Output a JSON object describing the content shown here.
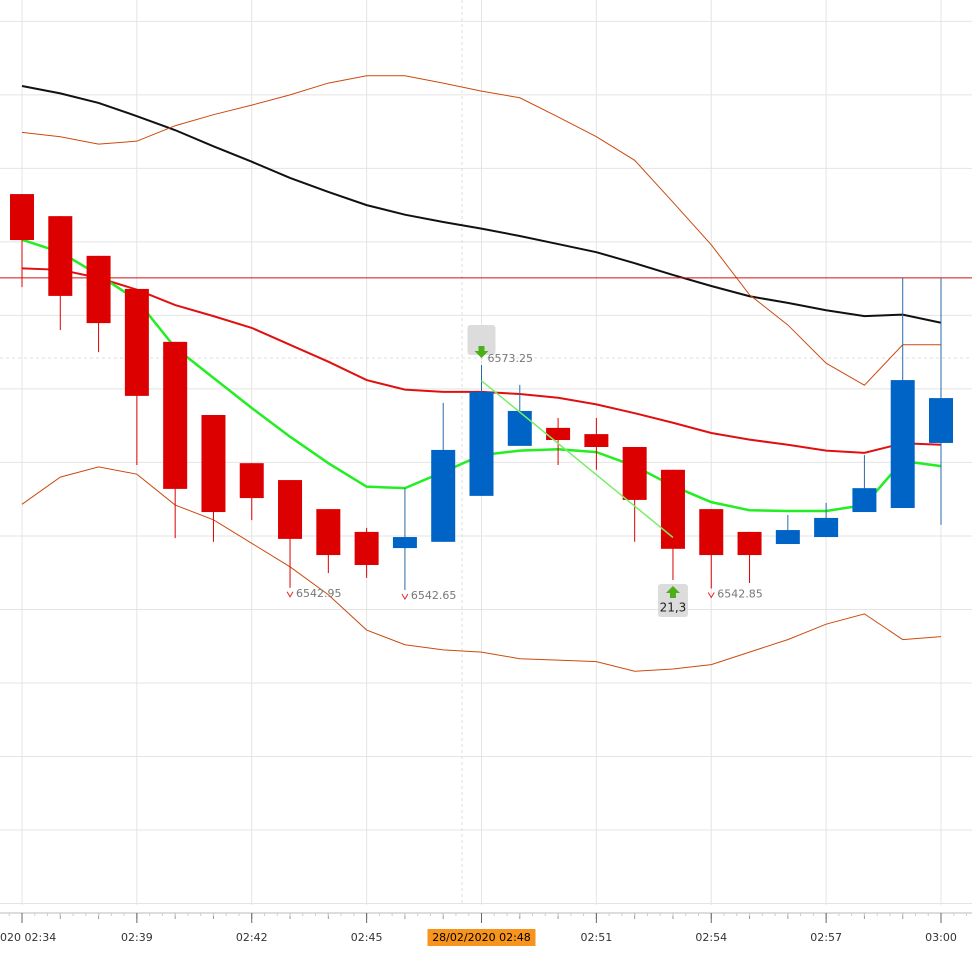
{
  "chart_data": {
    "type": "candlestick",
    "categories": [
      "020 02:34",
      null,
      null,
      "02:39",
      null,
      null,
      "02:42",
      null,
      null,
      "02:45",
      null,
      null,
      "28/02/2020 02:48",
      null,
      null,
      "02:51",
      null,
      null,
      "02:54",
      null,
      null,
      "02:57",
      null,
      null,
      "03:00"
    ],
    "highlight_category": 12,
    "candles": [
      {
        "open": 6596.5,
        "high": 6596.5,
        "low": 6583.85,
        "close": 6590.25
      },
      {
        "open": 6593.5,
        "high": 6593.5,
        "low": 6578.0,
        "close": 6582.65
      },
      {
        "open": 6588.1,
        "high": 6588.1,
        "low": 6575.0,
        "close": 6578.95
      },
      {
        "open": 6583.6,
        "high": 6583.6,
        "low": 6559.65,
        "close": 6569.05
      },
      {
        "open": 6576.4,
        "high": 6576.4,
        "low": 6549.7,
        "close": 6556.4
      },
      {
        "open": 6566.45,
        "high": 6566.45,
        "low": 6549.2,
        "close": 6553.25
      },
      {
        "open": 6559.9,
        "high": 6559.9,
        "low": 6552.15,
        "close": 6555.15
      },
      {
        "open": 6557.6,
        "high": 6557.6,
        "low": 6542.95,
        "close": 6549.6
      },
      {
        "open": 6553.65,
        "high": 6553.65,
        "low": 6544.95,
        "close": 6547.4
      },
      {
        "open": 6550.55,
        "high": 6551.1,
        "low": 6544.3,
        "close": 6546.05
      },
      {
        "open": 6548.35,
        "high": 6556.5,
        "low": 6542.65,
        "close": 6549.85
      },
      {
        "open": 6549.2,
        "high": 6568.1,
        "low": 6549.2,
        "close": 6561.7
      },
      {
        "open": 6555.45,
        "high": 6573.25,
        "low": 6555.45,
        "close": 6569.6
      },
      {
        "open": 6562.25,
        "high": 6570.55,
        "low": 6562.25,
        "close": 6567.0
      },
      {
        "open": 6564.7,
        "high": 6566.05,
        "low": 6559.65,
        "close": 6563.05
      },
      {
        "open": 6563.85,
        "high": 6566.05,
        "low": 6559.0,
        "close": 6562.1
      },
      {
        "open": 6562.1,
        "high": 6562.1,
        "low": 6549.2,
        "close": 6554.9
      },
      {
        "open": 6559.0,
        "high": 6559.0,
        "low": 6544.0,
        "close": 6548.25
      },
      {
        "open": 6553.65,
        "high": 6553.65,
        "low": 6542.85,
        "close": 6547.4
      },
      {
        "open": 6550.55,
        "high": 6550.55,
        "low": 6543.6,
        "close": 6547.4
      },
      {
        "open": 6548.9,
        "high": 6552.85,
        "low": 6548.9,
        "close": 6550.8
      },
      {
        "open": 6549.85,
        "high": 6554.5,
        "low": 6549.85,
        "close": 6552.45
      },
      {
        "open": 6553.25,
        "high": 6561.0,
        "low": 6553.25,
        "close": 6556.5
      },
      {
        "open": 6553.8,
        "high": 6585.1,
        "low": 6553.8,
        "close": 6571.2
      },
      {
        "open": 6562.65,
        "high": 6585.1,
        "low": 6551.5,
        "close": 6568.75
      }
    ],
    "up_color": "#0063c6",
    "down_color": "#dd0000",
    "series": [
      {
        "color": "#111111",
        "width": 2,
        "values": [
          6611.2,
          6610.2,
          6608.9,
          6607.1,
          6605.2,
          6603.0,
          6600.9,
          6598.7,
          6596.8,
          6595.0,
          6593.7,
          6592.7,
          6591.8,
          6590.8,
          6589.7,
          6588.6,
          6587.1,
          6585.5,
          6584.0,
          6582.6,
          6581.7,
          6580.7,
          6579.9,
          6580.1,
          6579.0
        ]
      },
      {
        "color": "#e01010",
        "width": 2,
        "values": [
          6586.4,
          6586.2,
          6585.1,
          6583.5,
          6581.4,
          6579.9,
          6578.3,
          6576.0,
          6573.7,
          6571.2,
          6569.9,
          6569.6,
          6569.6,
          6569.3,
          6568.8,
          6567.9,
          6566.7,
          6565.4,
          6564.0,
          6563.1,
          6562.4,
          6561.6,
          6561.3,
          6562.6,
          6562.4
        ]
      },
      {
        "color": "#22ee22",
        "width": 2.5,
        "values": [
          6590.3,
          6588.6,
          6585.5,
          6582.1,
          6575.6,
          6571.5,
          6567.4,
          6563.5,
          6559.9,
          6556.7,
          6556.5,
          6558.7,
          6561.0,
          6561.6,
          6561.8,
          6561.4,
          6559.5,
          6556.8,
          6554.6,
          6553.5,
          6553.4,
          6553.4,
          6554.2,
          6560.2,
          6559.5
        ]
      },
      {
        "color": "#cc4a10",
        "width": 1,
        "values": [
          6604.9,
          6604.3,
          6603.3,
          6603.7,
          6605.8,
          6607.3,
          6608.6,
          6610.0,
          6611.6,
          6612.6,
          6612.6,
          6611.6,
          6610.5,
          6609.6,
          6607.0,
          6604.3,
          6601.1,
          6595.4,
          6589.6,
          6582.8,
          6578.7,
          6573.5,
          6570.5,
          6576.0,
          6576.0
        ]
      },
      {
        "color": "#cc4a10",
        "width": 1,
        "values": [
          6554.3,
          6558.0,
          6559.4,
          6558.4,
          6554.2,
          6552.2,
          6549.0,
          6545.8,
          6542.0,
          6537.2,
          6535.2,
          6534.5,
          6534.2,
          6533.3,
          6533.1,
          6532.9,
          6531.6,
          6531.9,
          6532.5,
          6534.2,
          6535.9,
          6538.0,
          6539.4,
          6535.9,
          6536.3
        ]
      }
    ],
    "hline": {
      "value": 6585.1,
      "color": "#d01010"
    },
    "trend_line": {
      "from": 12,
      "to": 17,
      "values": [
        6571.1,
        6549.8
      ],
      "color": "#77ee66"
    },
    "annotations": [
      {
        "value": 6573.25,
        "index": 12,
        "side": "high",
        "arrow": "down"
      },
      {
        "value": 6542.95,
        "index": 7,
        "side": "low"
      },
      {
        "value": 6542.65,
        "index": 10,
        "side": "low"
      },
      {
        "value": 6542.85,
        "index": 18,
        "side": "low"
      },
      {
        "value": 21.3,
        "label": "21,3",
        "index": 17,
        "side": "low",
        "arrow": "up"
      }
    ],
    "ylim": [
      6499.8,
      6622.9
    ],
    "ygrid": [
      6500,
      6510,
      6520,
      6530,
      6540,
      6550,
      6560,
      6570,
      6580,
      6590,
      6600,
      6610,
      6620
    ],
    "grid": true
  }
}
